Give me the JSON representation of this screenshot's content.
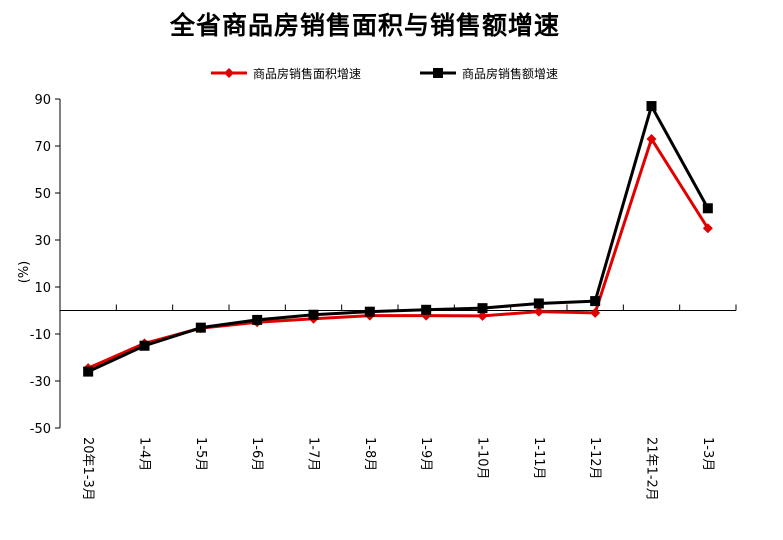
{
  "chart_data": {
    "type": "line",
    "title": "全省商品房销售面积与销售额增速",
    "xlabel": "",
    "ylabel": "(%)",
    "categories": [
      "20年1-3月",
      "1-4月",
      "1-5月",
      "1-6月",
      "1-7月",
      "1-8月",
      "1-9月",
      "1-10月",
      "1-11月",
      "1-12月",
      "21年1-2月",
      "1-3月"
    ],
    "ylim": [
      -50,
      90
    ],
    "yticks": [
      90,
      70,
      50,
      30,
      10,
      -10,
      -30,
      -50
    ],
    "grid": false,
    "legend_position": "top",
    "series": [
      {
        "name": "商品房销售面积增速",
        "color": "#e00000",
        "marker": "diamond",
        "values": [
          -24.5,
          -14.0,
          -7.5,
          -5.0,
          -3.5,
          -2.2,
          -2.2,
          -2.3,
          -0.5,
          -1.0,
          73.0,
          35.0
        ]
      },
      {
        "name": "商品房销售额增速",
        "color": "#000000",
        "marker": "square",
        "values": [
          -26.0,
          -15.0,
          -7.3,
          -4.0,
          -1.8,
          -0.5,
          0.3,
          1.0,
          3.0,
          4.0,
          87.0,
          43.5
        ]
      }
    ]
  }
}
